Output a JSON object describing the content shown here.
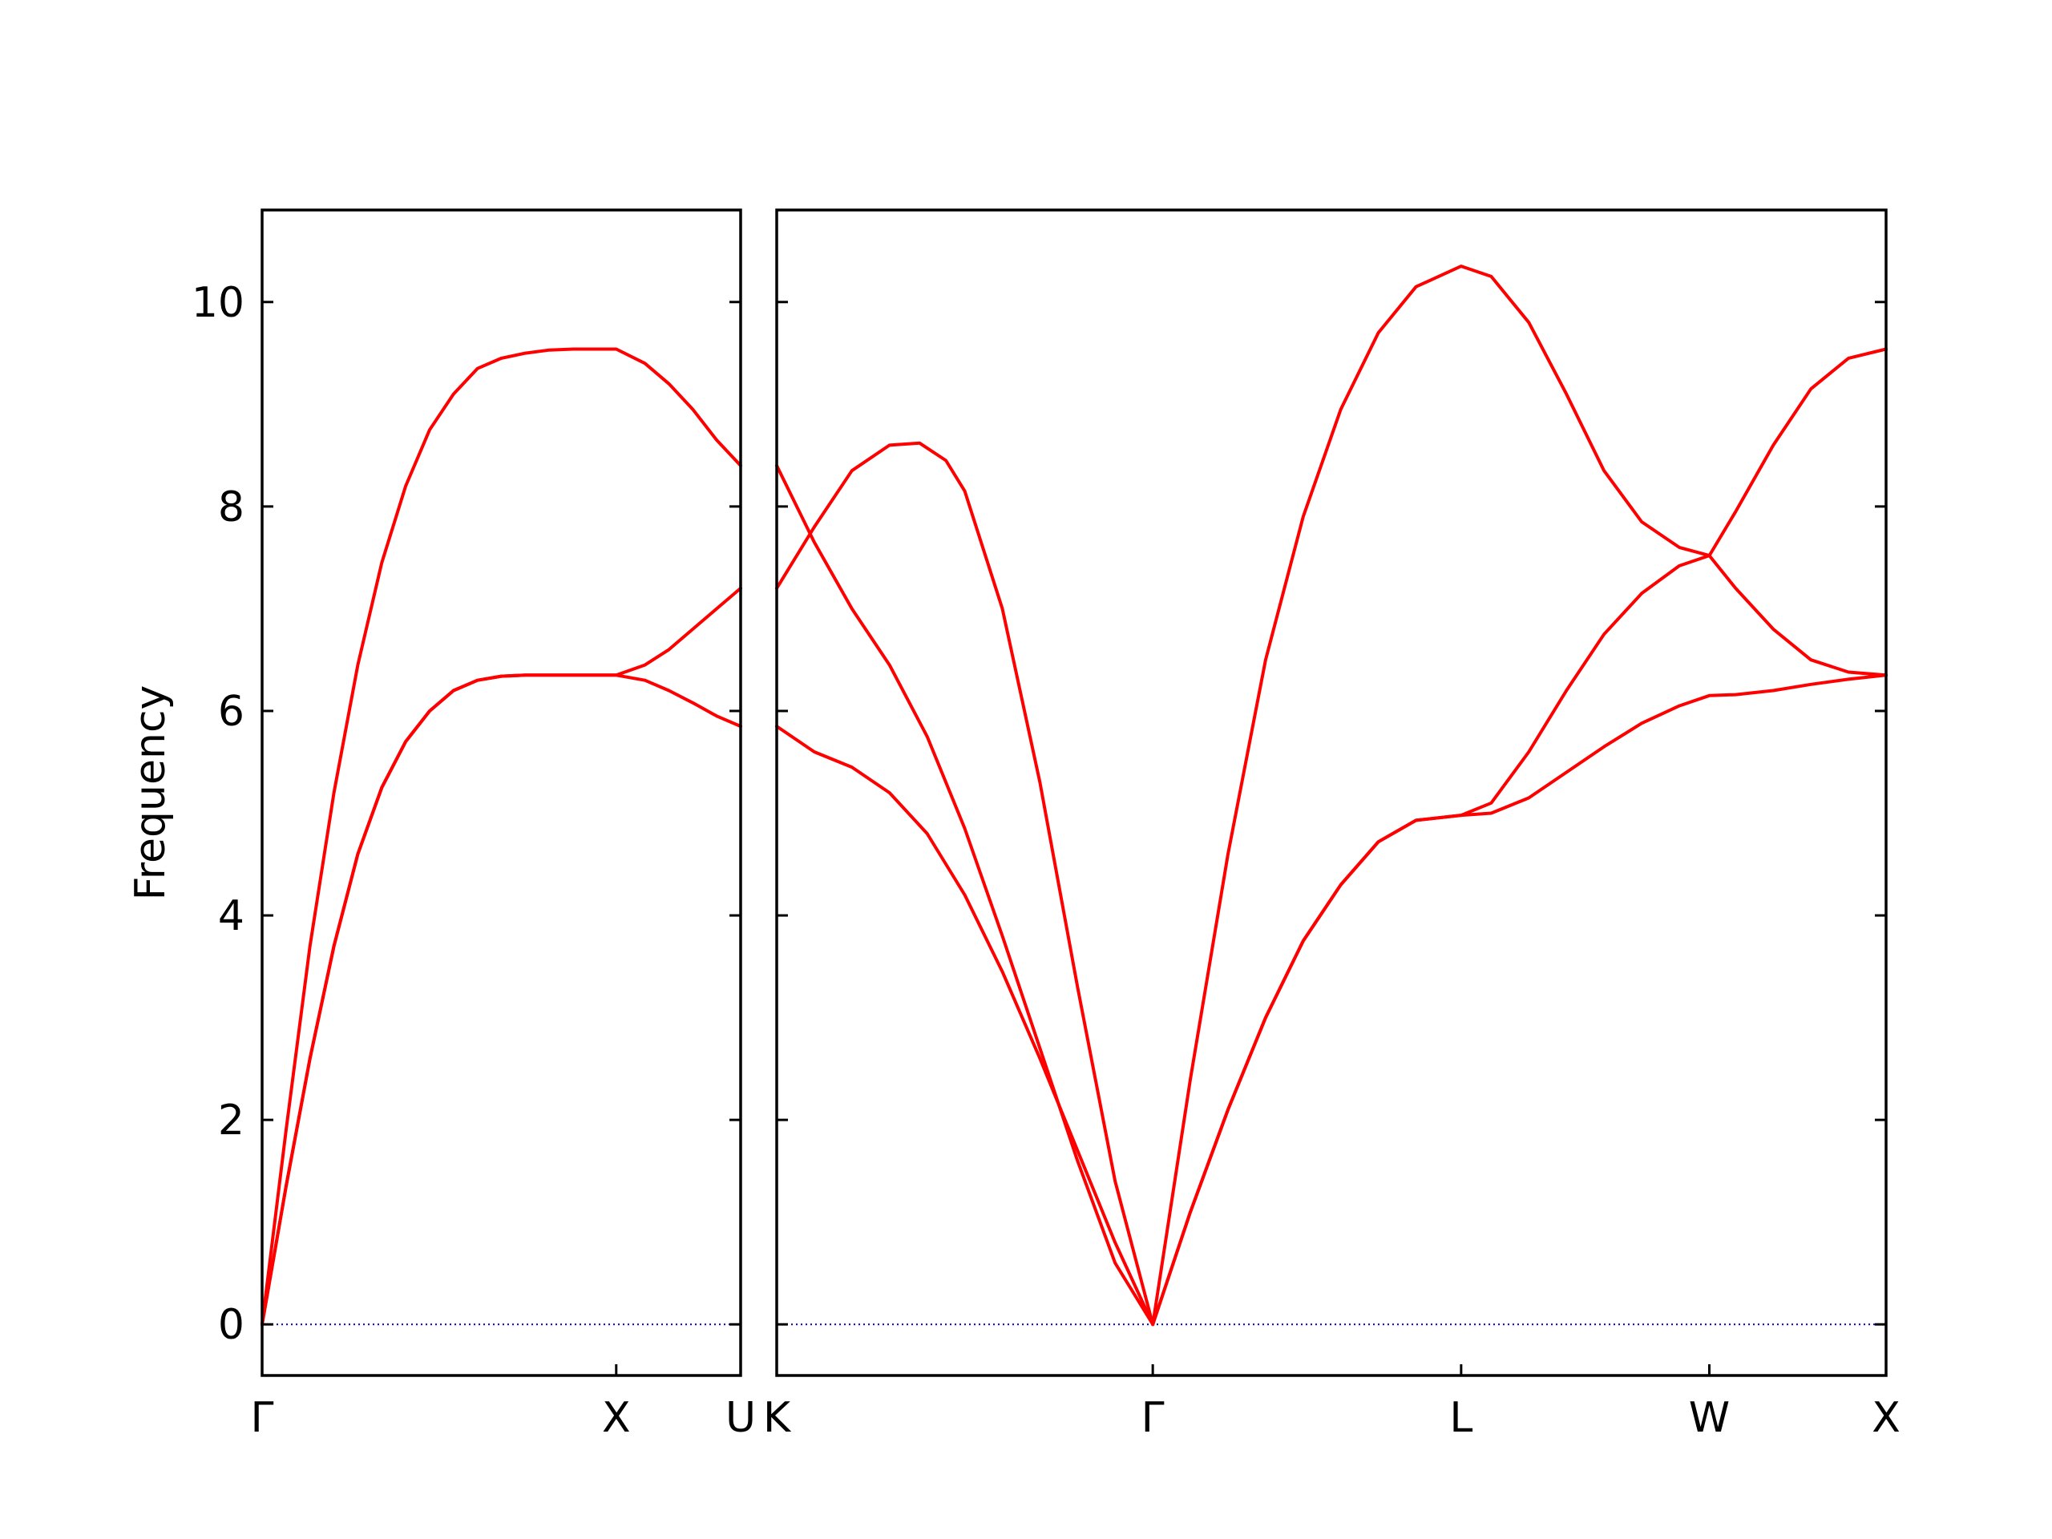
{
  "chart_data": {
    "type": "line",
    "ylabel": "Frequency",
    "ylim": [
      -0.5,
      10.9
    ],
    "yticks": [
      0,
      2,
      4,
      6,
      8,
      10
    ],
    "colors": {
      "band": "#ff0000",
      "zero_line": "#0000cc",
      "axes": "#000000"
    },
    "zero_line_style": "dotted",
    "panels": [
      {
        "xlim": [
          0,
          1.0
        ],
        "ticks": [
          {
            "x": 0.0,
            "label": "Γ"
          },
          {
            "x": 0.74,
            "label": "X"
          },
          {
            "x": 1.0,
            "label": "U"
          }
        ],
        "bands": [
          {
            "x": [
              0,
              0.05,
              0.1,
              0.15,
              0.2,
              0.25,
              0.3,
              0.35,
              0.4,
              0.45,
              0.5,
              0.55,
              0.6,
              0.65,
              0.7,
              0.74,
              0.8,
              0.85,
              0.9,
              0.95,
              1.0
            ],
            "y": [
              0,
              1.35,
              2.6,
              3.7,
              4.6,
              5.25,
              5.7,
              6.0,
              6.2,
              6.3,
              6.34,
              6.35,
              6.35,
              6.35,
              6.35,
              6.35,
              6.3,
              6.2,
              6.08,
              5.95,
              5.85
            ]
          },
          {
            "x": [
              0,
              0.05,
              0.1,
              0.15,
              0.2,
              0.25,
              0.3,
              0.35,
              0.4,
              0.45,
              0.5,
              0.55,
              0.6,
              0.65,
              0.7,
              0.74,
              0.8,
              0.85,
              0.9,
              0.95,
              1.0
            ],
            "y": [
              0,
              1.35,
              2.6,
              3.7,
              4.6,
              5.25,
              5.7,
              6.0,
              6.2,
              6.3,
              6.34,
              6.35,
              6.35,
              6.35,
              6.35,
              6.35,
              6.45,
              6.6,
              6.8,
              7.0,
              7.2
            ]
          },
          {
            "x": [
              0,
              0.05,
              0.1,
              0.15,
              0.2,
              0.25,
              0.3,
              0.35,
              0.4,
              0.45,
              0.5,
              0.55,
              0.6,
              0.65,
              0.7,
              0.74,
              0.8,
              0.85,
              0.9,
              0.95,
              1.0
            ],
            "y": [
              0,
              1.9,
              3.7,
              5.2,
              6.45,
              7.45,
              8.2,
              8.75,
              9.1,
              9.35,
              9.45,
              9.5,
              9.53,
              9.54,
              9.54,
              9.54,
              9.4,
              9.2,
              8.95,
              8.65,
              8.4
            ]
          }
        ]
      },
      {
        "xlim": [
          1.0,
          3.95
        ],
        "ticks": [
          {
            "x": 1.0,
            "label": "K"
          },
          {
            "x": 2.0,
            "label": "Γ"
          },
          {
            "x": 2.82,
            "label": "L"
          },
          {
            "x": 3.48,
            "label": "W"
          },
          {
            "x": 3.95,
            "label": "X"
          }
        ],
        "bands": [
          {
            "x": [
              1.0,
              1.1,
              1.2,
              1.3,
              1.4,
              1.5,
              1.6,
              1.7,
              1.8,
              1.9,
              2.0
            ],
            "y": [
              5.85,
              5.6,
              5.45,
              5.2,
              4.8,
              4.2,
              3.45,
              2.6,
              1.7,
              0.8,
              0
            ]
          },
          {
            "x": [
              1.0,
              1.1,
              1.2,
              1.3,
              1.4,
              1.5,
              1.6,
              1.7,
              1.8,
              1.9,
              2.0
            ],
            "y": [
              8.4,
              7.65,
              7.0,
              6.45,
              5.75,
              4.85,
              3.8,
              2.7,
              1.6,
              0.6,
              0
            ]
          },
          {
            "x": [
              1.0,
              1.1,
              1.2,
              1.3,
              1.38,
              1.45,
              1.5,
              1.6,
              1.7,
              1.8,
              1.9,
              2.0
            ],
            "y": [
              7.2,
              7.8,
              8.35,
              8.6,
              8.62,
              8.45,
              8.15,
              7.0,
              5.3,
              3.3,
              1.4,
              0
            ]
          },
          {
            "x": [
              2.0,
              2.1,
              2.2,
              2.3,
              2.4,
              2.5,
              2.6,
              2.7,
              2.82,
              2.9,
              3.0,
              3.1,
              3.2,
              3.3,
              3.4,
              3.48,
              3.55,
              3.65,
              3.75,
              3.85,
              3.95
            ],
            "y": [
              0,
              1.1,
              2.1,
              3.0,
              3.75,
              4.3,
              4.72,
              4.93,
              4.98,
              5.0,
              5.15,
              5.4,
              5.65,
              5.88,
              6.05,
              6.15,
              6.16,
              6.2,
              6.26,
              6.31,
              6.35
            ]
          },
          {
            "x": [
              2.0,
              2.1,
              2.2,
              2.3,
              2.4,
              2.5,
              2.6,
              2.7,
              2.82,
              2.9,
              3.0,
              3.1,
              3.2,
              3.3,
              3.4,
              3.48,
              3.55,
              3.65,
              3.75,
              3.85,
              3.95
            ],
            "y": [
              0,
              1.1,
              2.1,
              3.0,
              3.75,
              4.3,
              4.72,
              4.93,
              4.98,
              5.1,
              5.6,
              6.2,
              6.75,
              7.15,
              7.42,
              7.52,
              7.2,
              6.8,
              6.5,
              6.38,
              6.35
            ]
          },
          {
            "x": [
              2.0,
              2.1,
              2.2,
              2.3,
              2.4,
              2.5,
              2.6,
              2.7,
              2.82,
              2.9,
              3.0,
              3.1,
              3.2,
              3.3,
              3.4,
              3.48,
              3.55,
              3.65,
              3.75,
              3.85,
              3.95
            ],
            "y": [
              0,
              2.4,
              4.6,
              6.5,
              7.9,
              8.95,
              9.7,
              10.15,
              10.35,
              10.25,
              9.8,
              9.1,
              8.35,
              7.85,
              7.6,
              7.52,
              7.95,
              8.6,
              9.15,
              9.45,
              9.54
            ]
          }
        ]
      }
    ]
  }
}
